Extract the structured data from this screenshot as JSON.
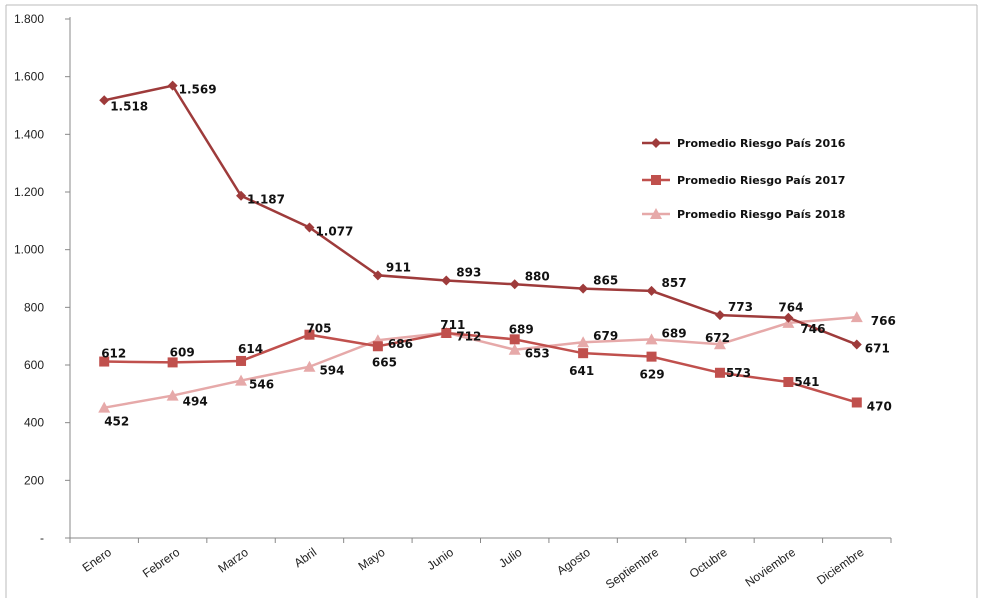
{
  "chart_data": {
    "type": "line",
    "categories": [
      "Enero",
      "Febrero",
      "Marzo",
      "Abril",
      "Mayo",
      "Junio",
      "Julio",
      "Agosto",
      "Septiembre",
      "Octubre",
      "Noviembre",
      "Diciembre"
    ],
    "series": [
      {
        "name": "Promedio Riesgo País 2016",
        "color": "#9e3b3b",
        "marker": "diamond",
        "values": [
          1518,
          1569,
          1187,
          1077,
          911,
          893,
          880,
          865,
          857,
          773,
          764,
          671
        ],
        "labels": [
          "1.518",
          "1.569",
          "1.187",
          "1.077",
          "911",
          "893",
          "880",
          "865",
          "857",
          "773",
          "764",
          "671"
        ]
      },
      {
        "name": "Promedio Riesgo País 2017",
        "color": "#c0504d",
        "marker": "square",
        "values": [
          612,
          609,
          614,
          705,
          665,
          711,
          689,
          641,
          629,
          573,
          541,
          470
        ],
        "labels": [
          "612",
          "609",
          "614",
          "705",
          "665",
          "711",
          "689",
          "641",
          "629",
          "573",
          "541",
          "470"
        ]
      },
      {
        "name": "Promedio Riesgo País 2018",
        "color": "#e6a9a9",
        "marker": "triangle",
        "values": [
          452,
          494,
          546,
          594,
          686,
          712,
          653,
          679,
          689,
          672,
          746,
          766
        ],
        "labels": [
          "452",
          "494",
          "546",
          "594",
          "686",
          "712",
          "653",
          "679",
          "689",
          "672",
          "746",
          "766"
        ]
      }
    ],
    "y_ticks": [
      0,
      200,
      400,
      600,
      800,
      1000,
      1200,
      1400,
      1600,
      1800
    ],
    "y_tick_labels": [
      "-",
      "200",
      "400",
      "600",
      "800",
      "1.000",
      "1.200",
      "1.400",
      "1.600",
      "1.800"
    ],
    "ylim": [
      0,
      1800
    ],
    "grid": false,
    "legend_position": "right"
  }
}
